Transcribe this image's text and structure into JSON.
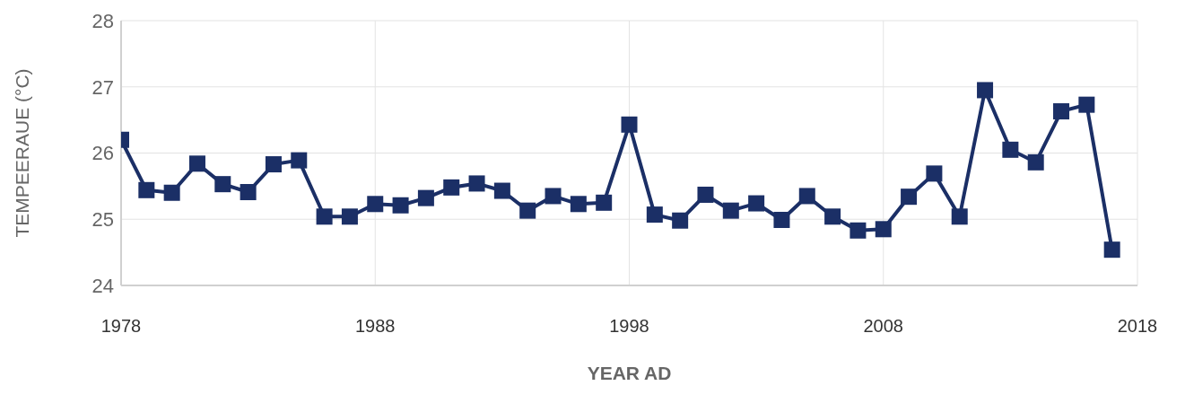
{
  "chart_data": {
    "type": "line",
    "xlabel": "YEAR AD",
    "ylabel": "TEMPEERAUE (°C)",
    "x": [
      1978,
      1979,
      1980,
      1981,
      1982,
      1983,
      1984,
      1985,
      1986,
      1987,
      1988,
      1989,
      1990,
      1991,
      1992,
      1993,
      1994,
      1995,
      1996,
      1997,
      1998,
      1999,
      2000,
      2001,
      2002,
      2003,
      2004,
      2005,
      2006,
      2007,
      2008,
      2009,
      2010,
      2011,
      2012,
      2013,
      2014,
      2015,
      2016,
      2017
    ],
    "series": [
      {
        "color": "#1b2f66",
        "values": [
          26.2,
          25.44,
          25.4,
          25.84,
          25.53,
          25.41,
          25.83,
          25.89,
          25.04,
          25.04,
          25.23,
          25.21,
          25.32,
          25.48,
          25.54,
          25.43,
          25.13,
          25.35,
          25.23,
          25.25,
          26.43,
          25.07,
          24.98,
          25.37,
          25.13,
          25.24,
          24.99,
          25.35,
          25.04,
          24.83,
          24.85,
          25.34,
          25.69,
          25.04,
          26.95,
          26.05,
          25.86,
          26.63,
          26.73,
          24.54
        ]
      }
    ],
    "xlim": [
      1978,
      2018
    ],
    "xticks": [
      1978,
      1988,
      1998,
      2008,
      2018
    ],
    "ylim": [
      24,
      28
    ],
    "yticks": [
      24,
      25,
      26,
      27,
      28
    ],
    "grid": true,
    "marker": "square",
    "line_style": "solid",
    "legend": false
  }
}
